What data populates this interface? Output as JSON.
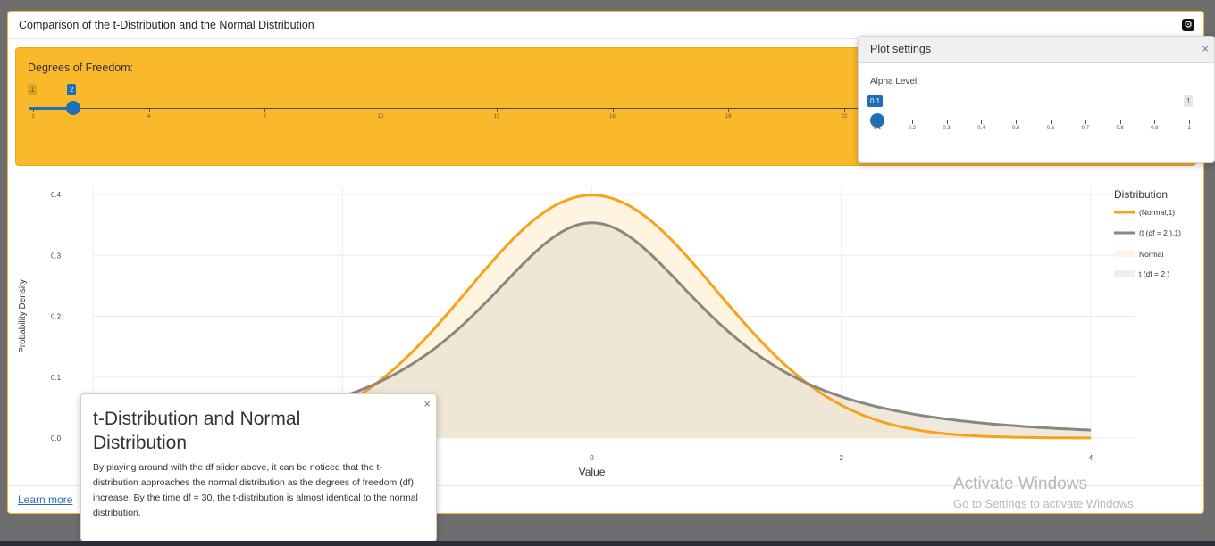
{
  "panel": {
    "title": "Comparison of the t-Distribution and the Normal Distribution",
    "settings_icon": "gear-icon"
  },
  "df_slider": {
    "label": "Degrees of Freedom:",
    "min": 1,
    "max": 30,
    "value": 2,
    "min_label": "1",
    "value_label": "2",
    "ticks": [
      "1",
      "4",
      "7",
      "10",
      "13",
      "16",
      "19",
      "22"
    ]
  },
  "plot_settings": {
    "title": "Plot settings",
    "close": "×",
    "alpha_label": "Alpha Level:",
    "alpha_value_label": "0.1",
    "alpha_max_label": "1",
    "alpha_value": 0.1,
    "ticks": [
      "0.1",
      "0.2",
      "0.3",
      "0.4",
      "0.5",
      "0.6",
      "0.7",
      "0.8",
      "0.9",
      "1"
    ]
  },
  "popover": {
    "title": "t-Distribution and Normal Distribution",
    "close": "×",
    "text": "By playing around with the df slider above, it can be noticed that the t-distribution approaches the normal distribution as the degrees of freedom (df) increase. By the time df = 30, the t-distribution is almost identical to the normal distribution."
  },
  "footer": {
    "learn_more": "Learn more"
  },
  "watermark": {
    "line1": "Activate Windows",
    "line2": "Go to Settings to activate Windows."
  },
  "chart_data": {
    "type": "line",
    "xlabel": "Value",
    "ylabel": "Probability Density",
    "xlim": [
      -4,
      4
    ],
    "ylim": [
      0,
      0.4
    ],
    "x_ticks": [
      "0",
      "2",
      "4"
    ],
    "y_ticks": [
      "0.0",
      "0.1",
      "0.2",
      "0.3",
      "0.4"
    ],
    "grid": true,
    "legend_title": "Distribution",
    "legend_placement": "right",
    "series": [
      {
        "name": "(Normal,1)",
        "kind": "line",
        "color": "#f5a31a",
        "df": null
      },
      {
        "name": "(t (df = 2 ),1)",
        "kind": "line",
        "color": "#8a8680",
        "df": 2
      }
    ],
    "fills": [
      {
        "name": "Normal",
        "color": "#fff4e0"
      },
      {
        "name": "t (df = 2 )",
        "color": "#eeeeee"
      }
    ]
  }
}
